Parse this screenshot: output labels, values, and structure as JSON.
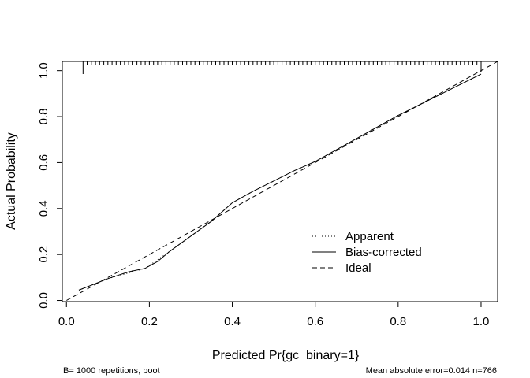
{
  "chart_data": {
    "type": "line",
    "title": "",
    "xlabel": "Predicted Pr{gc_binary=1}",
    "ylabel": "Actual Probability",
    "xlim": [
      -0.01,
      1.04
    ],
    "ylim": [
      -0.005,
      1.04
    ],
    "x_ticks": [
      "0.0",
      "0.2",
      "0.4",
      "0.6",
      "0.8",
      "1.0"
    ],
    "x_tick_values": [
      0,
      0.2,
      0.4,
      0.6,
      0.8,
      1.0
    ],
    "y_ticks": [
      "0.0",
      "0.2",
      "0.4",
      "0.6",
      "0.8",
      "1.0"
    ],
    "y_tick_values": [
      0,
      0.2,
      0.4,
      0.6,
      0.8,
      1.0
    ],
    "grid": false,
    "legend_position": "bottom-right",
    "series": [
      {
        "name": "Apparent",
        "style": "dotted",
        "x": [
          0.03,
          0.1,
          0.19,
          0.25,
          0.3,
          0.35,
          0.4,
          0.45,
          0.5,
          0.55,
          0.6,
          0.65,
          0.7,
          0.75,
          0.8,
          0.85,
          0.9,
          0.95,
          1.0
        ],
        "y": [
          0.045,
          0.095,
          0.14,
          0.215,
          0.28,
          0.345,
          0.425,
          0.475,
          0.52,
          0.565,
          0.605,
          0.655,
          0.705,
          0.755,
          0.805,
          0.85,
          0.895,
          0.94,
          0.985
        ]
      },
      {
        "name": "Bias-corrected",
        "style": "solid",
        "x": [
          0.03,
          0.1,
          0.15,
          0.19,
          0.22,
          0.25,
          0.3,
          0.35,
          0.4,
          0.45,
          0.5,
          0.55,
          0.6,
          0.65,
          0.7,
          0.75,
          0.8,
          0.85,
          0.9,
          0.95,
          1.0
        ],
        "y": [
          0.045,
          0.095,
          0.125,
          0.14,
          0.17,
          0.215,
          0.28,
          0.345,
          0.425,
          0.475,
          0.52,
          0.565,
          0.605,
          0.655,
          0.705,
          0.755,
          0.805,
          0.85,
          0.895,
          0.94,
          0.985
        ]
      },
      {
        "name": "Ideal",
        "style": "dashed",
        "x": [
          0.0,
          1.04
        ],
        "y": [
          0.0,
          1.04
        ]
      }
    ],
    "rug": [
      0.04,
      0.05,
      0.06,
      0.07,
      0.08,
      0.09,
      0.1,
      0.11,
      0.12,
      0.13,
      0.14,
      0.15,
      0.16,
      0.17,
      0.18,
      0.19,
      0.2,
      0.21,
      0.22,
      0.23,
      0.24,
      0.25,
      0.26,
      0.27,
      0.28,
      0.29,
      0.3,
      0.31,
      0.32,
      0.33,
      0.34,
      0.35,
      0.36,
      0.37,
      0.38,
      0.39,
      0.4,
      0.41,
      0.42,
      0.43,
      0.44,
      0.45,
      0.46,
      0.47,
      0.48,
      0.49,
      0.5,
      0.51,
      0.52,
      0.53,
      0.54,
      0.55,
      0.56,
      0.57,
      0.58,
      0.59,
      0.6,
      0.61,
      0.62,
      0.63,
      0.64,
      0.65,
      0.66,
      0.67,
      0.68,
      0.69,
      0.7,
      0.71,
      0.72,
      0.73,
      0.74,
      0.75,
      0.76,
      0.77,
      0.78,
      0.79,
      0.8,
      0.81,
      0.82,
      0.83,
      0.84,
      0.85,
      0.86,
      0.87,
      0.88,
      0.89,
      0.9,
      0.91,
      0.92,
      0.93,
      0.94,
      0.95,
      0.96,
      0.97,
      0.98,
      0.99,
      1.0
    ],
    "footnote_left": "B= 1000 repetitions, boot",
    "footnote_right": "Mean absolute error=0.014 n=766"
  }
}
